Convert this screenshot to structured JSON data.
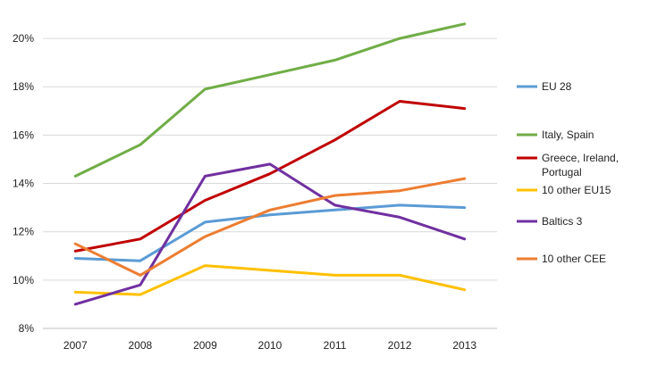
{
  "chart_data": {
    "type": "line",
    "title": "",
    "xlabel": "",
    "ylabel": "",
    "x": [
      2007,
      2008,
      2009,
      2010,
      2011,
      2012,
      2013
    ],
    "ylim": [
      8,
      21
    ],
    "yticks": [
      8,
      10,
      12,
      14,
      16,
      18,
      20
    ],
    "ytick_labels": [
      "8%",
      "10%",
      "12%",
      "14%",
      "16%",
      "18%",
      "20%"
    ],
    "xtick_labels": [
      "2007",
      "2008",
      "2009",
      "2010",
      "2011",
      "2012",
      "2013"
    ],
    "grid": "horizontal",
    "legend_position": "right",
    "series": [
      {
        "name": "EU 28",
        "color": "#5b9bd5",
        "values": [
          10.9,
          10.8,
          12.4,
          12.7,
          12.9,
          13.1,
          13.0
        ]
      },
      {
        "name": "Italy, Spain",
        "color": "#70ad47",
        "values": [
          14.3,
          15.6,
          17.9,
          18.5,
          19.1,
          20.0,
          20.6
        ]
      },
      {
        "name": "Greece, Ireland, Portugal",
        "legend_lines": [
          "Greece, Ireland,",
          "Portugal"
        ],
        "color": "#c00000",
        "values": [
          11.2,
          11.7,
          13.3,
          14.4,
          15.8,
          17.4,
          17.1
        ]
      },
      {
        "name": "10 other EU15",
        "color": "#ffc000",
        "values": [
          9.5,
          9.4,
          10.6,
          10.4,
          10.2,
          10.2,
          9.6
        ]
      },
      {
        "name": "Baltics 3",
        "color": "#7030a0",
        "values": [
          9.0,
          9.8,
          14.3,
          14.8,
          13.1,
          12.6,
          11.7
        ]
      },
      {
        "name": "10 other CEE",
        "color": "#ed7d31",
        "values": [
          11.5,
          10.2,
          11.8,
          12.9,
          13.5,
          13.7,
          14.2
        ]
      }
    ]
  }
}
